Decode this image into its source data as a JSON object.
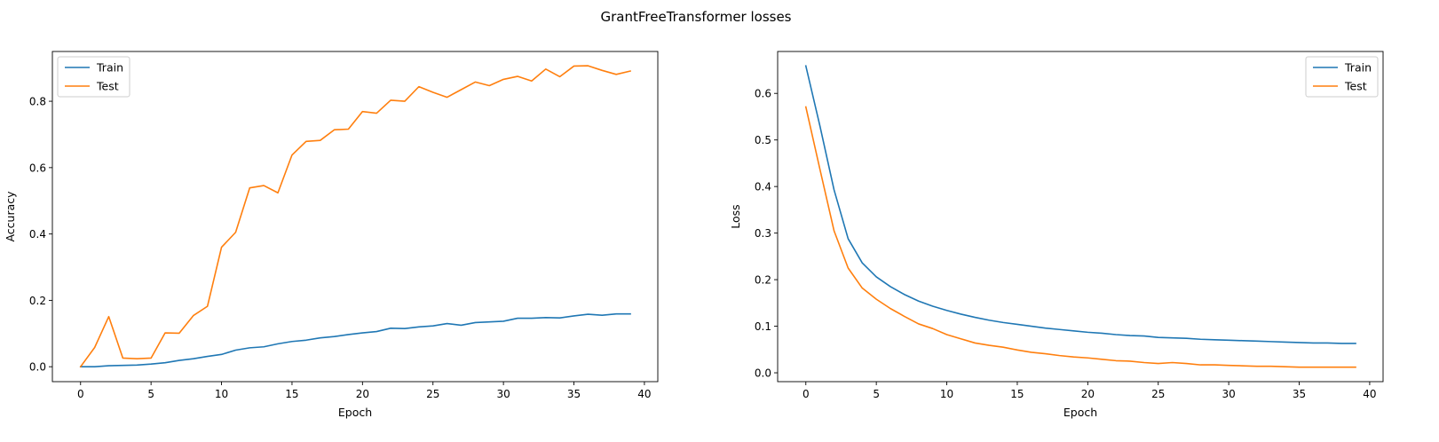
{
  "figure": {
    "title": "GrantFreeTransformer losses"
  },
  "colors": {
    "train": "#1f77b4",
    "test": "#ff7f0e"
  },
  "chart_data": [
    {
      "type": "line",
      "xlabel": "Epoch",
      "ylabel": "Accuracy",
      "xlim": [
        -2,
        40.95
      ],
      "ylim": [
        -0.045,
        0.95
      ],
      "xticks": [
        0,
        5,
        10,
        15,
        20,
        25,
        30,
        35,
        40
      ],
      "xtick_labels": [
        "0",
        "5",
        "10",
        "15",
        "20",
        "25",
        "30",
        "35",
        "40"
      ],
      "yticks": [
        0.0,
        0.2,
        0.4,
        0.6,
        0.8
      ],
      "ytick_labels": [
        "0.0",
        "0.2",
        "0.4",
        "0.6",
        "0.8"
      ],
      "legend": "top-left",
      "grid": false,
      "x": [
        0,
        1,
        2,
        3,
        4,
        5,
        6,
        7,
        8,
        9,
        10,
        11,
        12,
        13,
        14,
        15,
        16,
        17,
        18,
        19,
        20,
        21,
        22,
        23,
        24,
        25,
        26,
        27,
        28,
        29,
        30,
        31,
        32,
        33,
        34,
        35,
        36,
        37,
        38,
        39
      ],
      "series": [
        {
          "name": "Train",
          "values": [
            0.0,
            0.0,
            0.003,
            0.004,
            0.005,
            0.008,
            0.012,
            0.019,
            0.024,
            0.031,
            0.037,
            0.05,
            0.057,
            0.06,
            0.069,
            0.076,
            0.08,
            0.087,
            0.091,
            0.097,
            0.102,
            0.106,
            0.116,
            0.115,
            0.12,
            0.123,
            0.13,
            0.125,
            0.133,
            0.135,
            0.137,
            0.146,
            0.146,
            0.148,
            0.147,
            0.153,
            0.158,
            0.155,
            0.159,
            0.159
          ]
        },
        {
          "name": "Test",
          "values": [
            0.0,
            0.058,
            0.151,
            0.026,
            0.024,
            0.026,
            0.102,
            0.101,
            0.154,
            0.182,
            0.36,
            0.405,
            0.539,
            0.546,
            0.524,
            0.638,
            0.679,
            0.682,
            0.714,
            0.716,
            0.769,
            0.764,
            0.803,
            0.8,
            0.844,
            0.827,
            0.812,
            0.835,
            0.858,
            0.847,
            0.866,
            0.875,
            0.861,
            0.897,
            0.874,
            0.906,
            0.907,
            0.893,
            0.881,
            0.891
          ]
        }
      ]
    },
    {
      "type": "line",
      "xlabel": "Epoch",
      "ylabel": "Loss",
      "xlim": [
        -2,
        40.95
      ],
      "ylim": [
        -0.019,
        0.69
      ],
      "xticks": [
        0,
        5,
        10,
        15,
        20,
        25,
        30,
        35,
        40
      ],
      "xtick_labels": [
        "0",
        "5",
        "10",
        "15",
        "20",
        "25",
        "30",
        "35",
        "40"
      ],
      "yticks": [
        0.0,
        0.1,
        0.2,
        0.3,
        0.4,
        0.5,
        0.6
      ],
      "ytick_labels": [
        "0.0",
        "0.1",
        "0.2",
        "0.3",
        "0.4",
        "0.5",
        "0.6"
      ],
      "legend": "top-right",
      "grid": false,
      "x": [
        0,
        1,
        2,
        3,
        4,
        5,
        6,
        7,
        8,
        9,
        10,
        11,
        12,
        13,
        14,
        15,
        16,
        17,
        18,
        19,
        20,
        21,
        22,
        23,
        24,
        25,
        26,
        27,
        28,
        29,
        30,
        31,
        32,
        33,
        34,
        35,
        36,
        37,
        38,
        39
      ],
      "series": [
        {
          "name": "Train",
          "values": [
            0.659,
            0.53,
            0.393,
            0.288,
            0.236,
            0.206,
            0.185,
            0.168,
            0.154,
            0.143,
            0.134,
            0.126,
            0.119,
            0.113,
            0.108,
            0.104,
            0.1,
            0.096,
            0.093,
            0.09,
            0.087,
            0.085,
            0.082,
            0.08,
            0.079,
            0.076,
            0.075,
            0.074,
            0.072,
            0.071,
            0.07,
            0.069,
            0.068,
            0.067,
            0.066,
            0.065,
            0.064,
            0.064,
            0.063,
            0.063
          ]
        },
        {
          "name": "Test",
          "values": [
            0.571,
            0.437,
            0.305,
            0.225,
            0.182,
            0.158,
            0.138,
            0.121,
            0.105,
            0.095,
            0.082,
            0.073,
            0.064,
            0.059,
            0.055,
            0.049,
            0.044,
            0.041,
            0.037,
            0.034,
            0.032,
            0.029,
            0.026,
            0.025,
            0.022,
            0.02,
            0.022,
            0.02,
            0.017,
            0.017,
            0.016,
            0.015,
            0.014,
            0.014,
            0.013,
            0.012,
            0.012,
            0.012,
            0.012,
            0.012
          ]
        }
      ]
    }
  ]
}
